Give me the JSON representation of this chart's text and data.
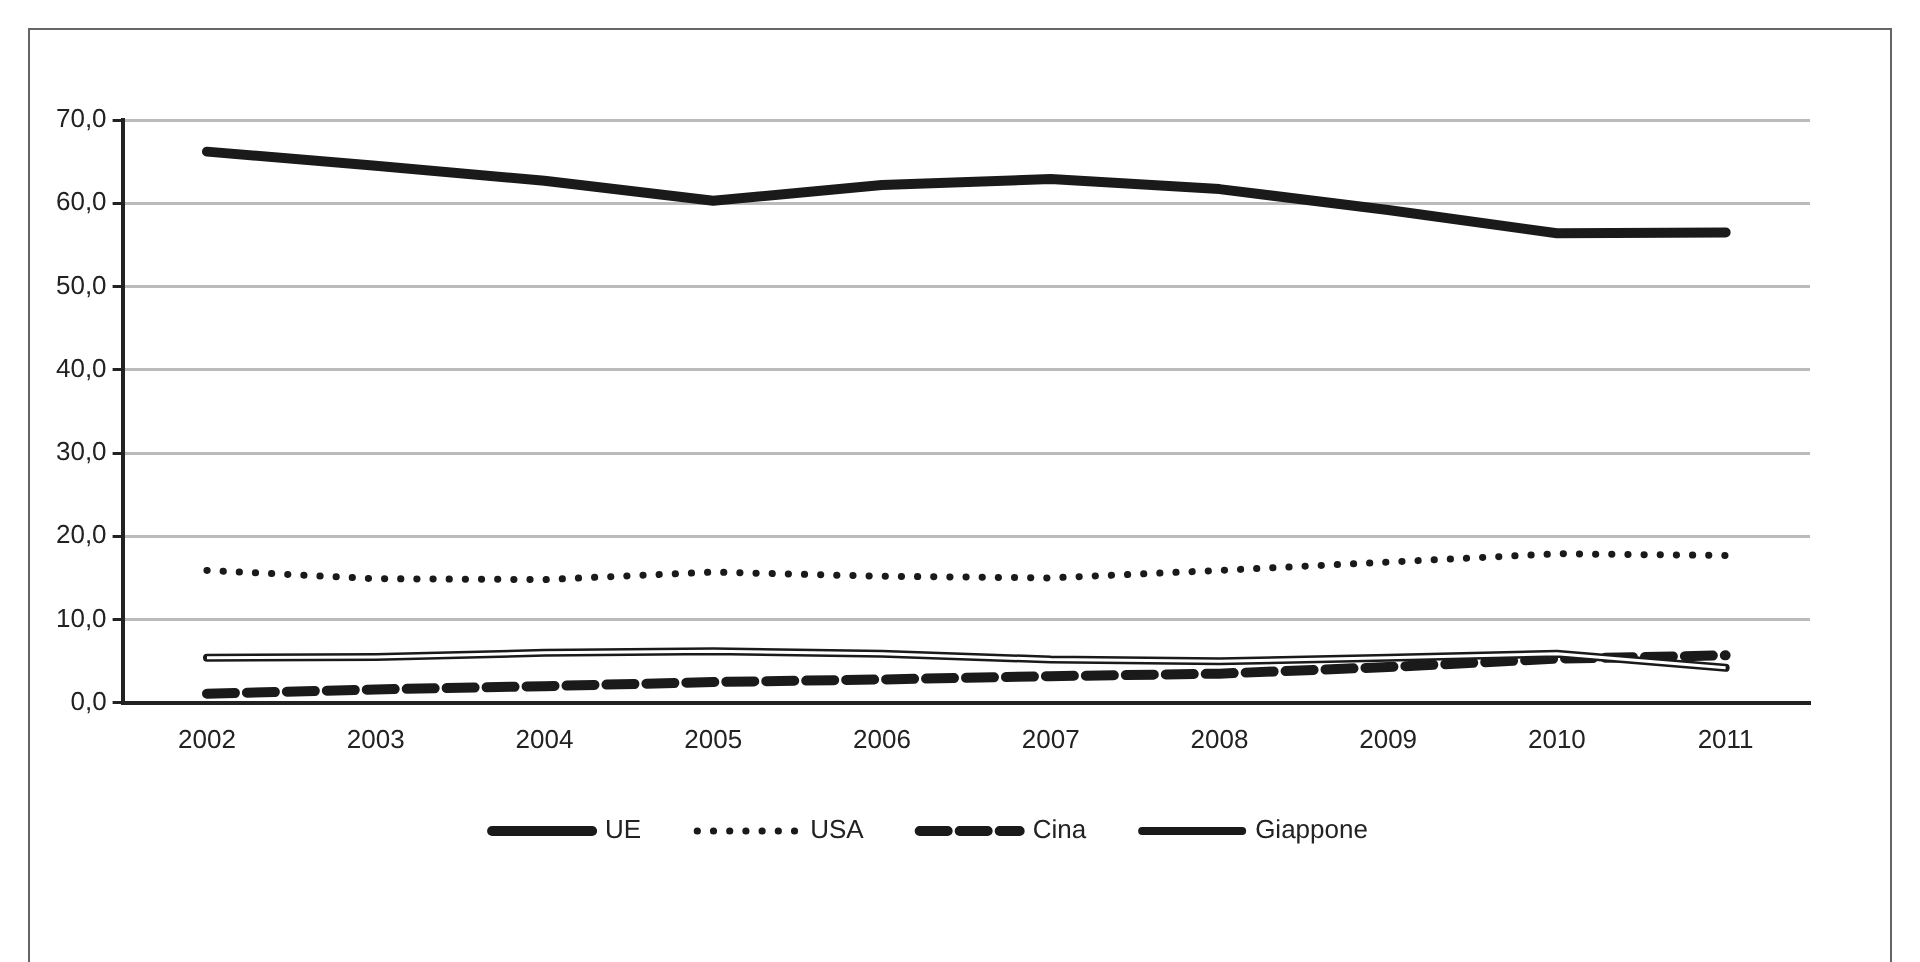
{
  "chart_data": {
    "type": "line",
    "categories": [
      "2002",
      "2003",
      "2004",
      "2005",
      "2006",
      "2007",
      "2008",
      "2009",
      "2010",
      "2011"
    ],
    "series": [
      {
        "name": "UE",
        "color": "#1a1a1a",
        "line_style": "solid",
        "values": [
          66.2,
          64.5,
          62.7,
          60.3,
          62.2,
          62.9,
          61.7,
          59.2,
          56.4,
          56.5
        ]
      },
      {
        "name": "USA",
        "color": "#1a1a1a",
        "line_style": "dotted",
        "values": [
          15.9,
          14.9,
          14.8,
          15.7,
          15.2,
          15.0,
          15.9,
          16.9,
          17.9,
          17.7
        ]
      },
      {
        "name": "Cina",
        "color": "#1a1a1a",
        "line_style": "dashed",
        "values": [
          1.1,
          1.6,
          2.0,
          2.5,
          2.8,
          3.2,
          3.5,
          4.3,
          5.3,
          5.7
        ]
      },
      {
        "name": "Giappone",
        "color": "#1a1a1a",
        "line_style": "solid",
        "values": [
          5.4,
          5.5,
          6.0,
          6.2,
          5.9,
          5.2,
          5.0,
          5.4,
          5.9,
          4.2
        ]
      }
    ],
    "ylim": [
      0,
      70
    ],
    "yticks": [
      {
        "value": 0,
        "label": "0,0"
      },
      {
        "value": 10,
        "label": "10,0"
      },
      {
        "value": 20,
        "label": "20,0"
      },
      {
        "value": 30,
        "label": "30,0"
      },
      {
        "value": 40,
        "label": "40,0"
      },
      {
        "value": 50,
        "label": "50,0"
      },
      {
        "value": 60,
        "label": "60,0"
      },
      {
        "value": 70,
        "label": "70,0"
      }
    ],
    "grid": "y",
    "legend": "bottom",
    "marker": "none"
  }
}
